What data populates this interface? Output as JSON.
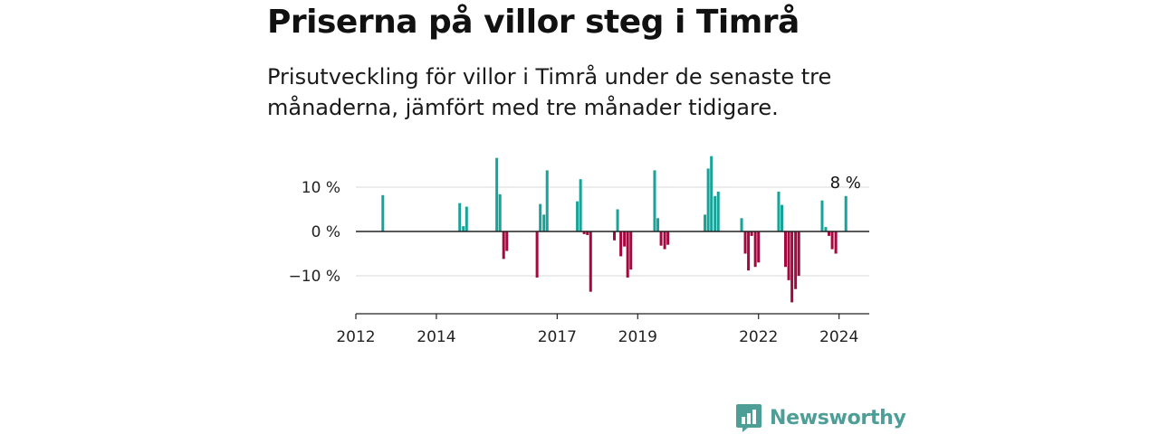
{
  "chart_data": {
    "type": "bar",
    "title": "Priserna på villor steg i Timrå",
    "subtitle": "Prisutveckling för villor i Timrå under de senaste tre månaderna, jämfört med tre månader tidigare.",
    "xlabel": "",
    "ylabel": "",
    "x_ticks": [
      2012,
      2014,
      2017,
      2019,
      2022,
      2024
    ],
    "y_ticks": [
      {
        "value": 10,
        "label": "10 %"
      },
      {
        "value": 0,
        "label": "0 %"
      },
      {
        "value": -10,
        "label": "−10 %"
      }
    ],
    "xlim": [
      2012.0,
      2024.75
    ],
    "ylim": [
      -18.5,
      18
    ],
    "grid": true,
    "colors": {
      "positive": "#17a398",
      "negative": "#a3083f"
    },
    "annotation": {
      "text": "8 %",
      "x": 2024.17,
      "value": 8
    },
    "x": [
      2012.67,
      2014.58,
      2014.67,
      2014.75,
      2015.5,
      2015.58,
      2015.67,
      2015.75,
      2016.5,
      2016.58,
      2016.67,
      2016.75,
      2017.5,
      2017.58,
      2017.67,
      2017.75,
      2017.83,
      2018.42,
      2018.5,
      2018.58,
      2018.67,
      2018.75,
      2018.83,
      2019.42,
      2019.5,
      2019.58,
      2019.67,
      2019.75,
      2020.67,
      2020.75,
      2020.83,
      2020.92,
      2021.0,
      2021.58,
      2021.67,
      2021.75,
      2021.83,
      2021.92,
      2022.0,
      2022.5,
      2022.58,
      2022.67,
      2022.75,
      2022.83,
      2022.92,
      2023.0,
      2023.58,
      2023.67,
      2023.75,
      2023.83,
      2023.92,
      2024.17
    ],
    "values": [
      8.2,
      6.4,
      1.2,
      5.6,
      16.6,
      8.4,
      -6.2,
      -4.4,
      -10.4,
      6.2,
      3.8,
      13.8,
      6.8,
      11.8,
      -0.6,
      -0.8,
      -13.6,
      -2.0,
      5.0,
      -5.6,
      -3.4,
      -10.4,
      -8.6,
      13.8,
      3.0,
      -3.2,
      -4.0,
      -3.0,
      3.8,
      14.2,
      17.0,
      8.0,
      9.0,
      3.0,
      -5.0,
      -8.8,
      -1.0,
      -8.0,
      -7.0,
      9.0,
      6.0,
      -8.0,
      -11.0,
      -16.0,
      -13.0,
      -10.0,
      7.0,
      1.0,
      -1.0,
      -4.0,
      -5.0,
      8.0
    ]
  },
  "brand": {
    "name": "Newsworthy",
    "logo_icon": "bar-chart-speech-bubble-icon",
    "color": "#4e9e98"
  }
}
